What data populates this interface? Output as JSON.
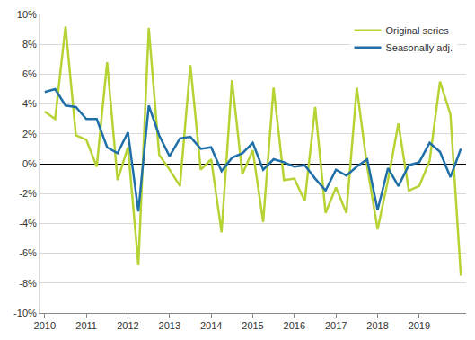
{
  "chart_data": {
    "type": "line",
    "categories": [
      "2010",
      null,
      null,
      null,
      "2011",
      null,
      null,
      null,
      "2012",
      null,
      null,
      null,
      "2013",
      null,
      null,
      null,
      "2014",
      null,
      null,
      null,
      "2015",
      null,
      null,
      null,
      "2016",
      null,
      null,
      null,
      "2017",
      null,
      null,
      null,
      "2018",
      null,
      null,
      null,
      "2019",
      null,
      null,
      null,
      null
    ],
    "series": [
      {
        "name": "Original series",
        "color": "#b5d334",
        "values": [
          3.5,
          3.0,
          9.2,
          1.9,
          1.6,
          -0.2,
          6.8,
          -1.1,
          1.1,
          -6.8,
          9.1,
          0.6,
          -0.4,
          -1.5,
          6.6,
          -0.4,
          0.3,
          -4.6,
          5.6,
          -0.7,
          0.9,
          -3.9,
          5.1,
          -1.1,
          -1.0,
          -2.5,
          3.8,
          -3.3,
          -1.6,
          -3.3,
          5.1,
          -0.2,
          -4.4,
          -1.1,
          2.7,
          -1.8,
          -1.5,
          0.2,
          5.5,
          3.3,
          -7.5
        ]
      },
      {
        "name": "Seasonally adj.",
        "color": "#1f6fa8",
        "values": [
          4.8,
          5.0,
          3.9,
          3.8,
          3.0,
          3.0,
          1.1,
          0.7,
          2.1,
          -3.2,
          3.9,
          1.9,
          0.5,
          1.7,
          1.8,
          1.0,
          1.1,
          -0.5,
          0.4,
          0.7,
          1.4,
          -0.4,
          0.3,
          0.1,
          -0.2,
          -0.1,
          -1.0,
          -1.8,
          -0.4,
          -0.8,
          -0.2,
          0.3,
          -3.1,
          -0.3,
          -1.5,
          -0.1,
          0.1,
          1.4,
          0.8,
          -0.9,
          1.0
        ]
      }
    ],
    "ylim": [
      -10,
      10
    ],
    "yticks": [
      {
        "value": -10,
        "label": "-10%"
      },
      {
        "value": -8,
        "label": "-8%"
      },
      {
        "value": -6,
        "label": "-6%"
      },
      {
        "value": -4,
        "label": "-4%"
      },
      {
        "value": -2,
        "label": "-2%"
      },
      {
        "value": 0,
        "label": "0%"
      },
      {
        "value": 2,
        "label": "2%"
      },
      {
        "value": 4,
        "label": "4%"
      },
      {
        "value": 6,
        "label": "6%"
      },
      {
        "value": 8,
        "label": "8%"
      },
      {
        "value": 10,
        "label": "10%"
      }
    ],
    "grid": true,
    "legend": "top-right"
  }
}
